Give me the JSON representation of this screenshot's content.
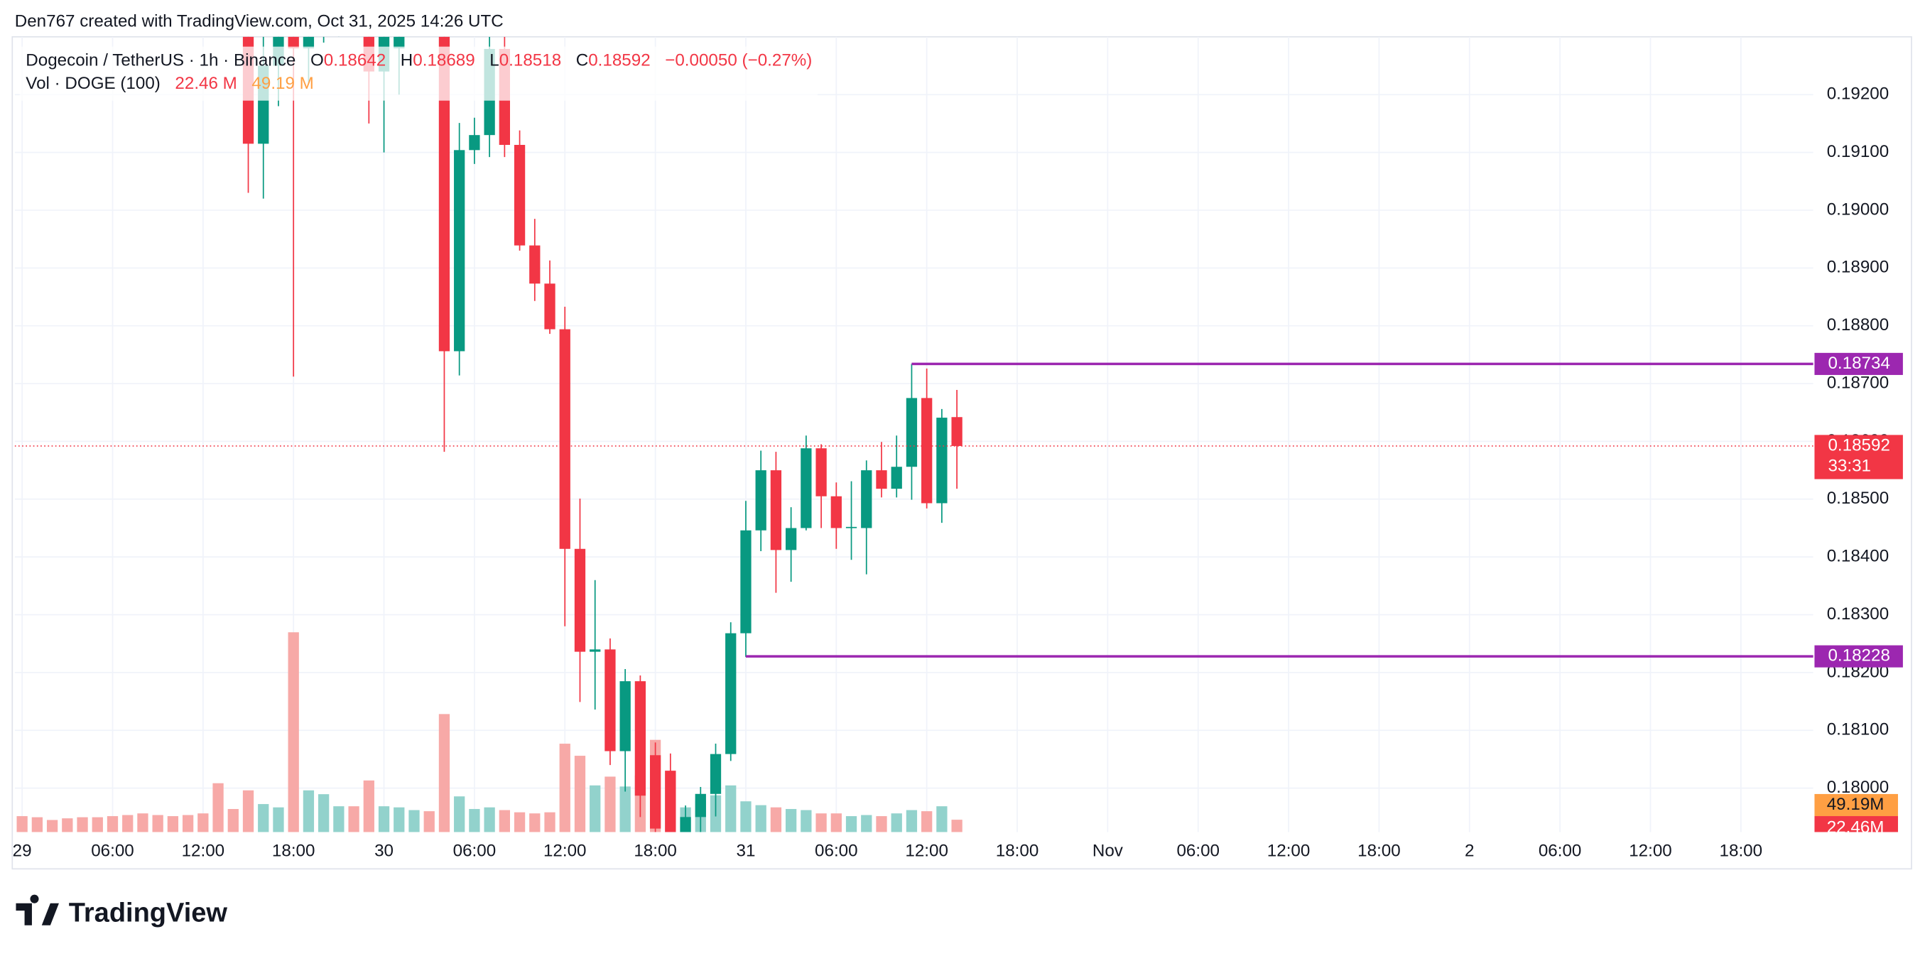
{
  "chart_data": {
    "type": "candlestick",
    "attribution": "Den767 created with TradingView.com, Oct 31, 2025 14:26 UTC",
    "title": "Dogecoin / TetherUS · 1h · Binance",
    "ohlc_keys": [
      "O",
      "H",
      "L",
      "C"
    ],
    "change": "−0.00050 (−0.27%)",
    "volume_title": "Vol · DOGE (100)",
    "volume_value_label": "22.46 M",
    "volume_ma_label": "49.19 M",
    "volume_axis_label": "22.46M",
    "volume_ma_axis_label": "49.19M",
    "volume_ma": 49.19,
    "countdown": "33:31",
    "logo": "TradingView",
    "x": [
      0,
      1,
      2,
      3,
      4,
      5,
      6,
      7,
      8,
      9,
      10,
      11,
      12,
      13,
      14,
      15,
      16,
      17,
      18,
      19,
      20,
      21,
      22,
      23,
      24,
      25,
      26,
      27,
      28,
      29,
      30,
      31,
      32,
      33,
      34,
      35,
      36,
      37,
      38,
      39,
      40,
      41,
      42,
      43,
      44,
      45,
      46,
      47,
      48,
      49,
      50,
      51,
      52,
      53,
      54,
      55,
      56,
      57,
      58,
      59,
      60,
      61,
      62
    ],
    "open": [
      null,
      null,
      null,
      null,
      null,
      null,
      null,
      null,
      null,
      null,
      null,
      null,
      null,
      null,
      null,
      0.1935,
      0.19115,
      0.1925,
      0.1932,
      0.1928,
      0.1932,
      0.1935,
      0.1938,
      0.1934,
      0.1924,
      0.1928,
      0.1935,
      0.1937,
      0.1936,
      0.18756,
      0.19104,
      0.1913,
      0.19279,
      0.19113,
      0.18939,
      0.18873,
      0.18794,
      0.18414,
      0.18236,
      0.1824,
      0.18064,
      0.18185,
      0.18057,
      0.1803,
      0.179,
      0.1795,
      0.1799,
      0.18059,
      0.18268,
      0.18446,
      0.1855,
      0.18412,
      0.1845,
      0.18588,
      0.18505,
      0.1845,
      0.1845,
      0.1855,
      0.18518,
      0.18556,
      0.18675,
      0.18493,
      0.18642
    ],
    "high": [
      null,
      null,
      null,
      null,
      null,
      null,
      null,
      null,
      null,
      null,
      null,
      null,
      null,
      null,
      null,
      0.194,
      0.1935,
      0.194,
      0.1935,
      0.1935,
      0.194,
      0.1942,
      0.1941,
      0.1938,
      0.1936,
      0.194,
      0.194,
      0.1942,
      0.1939,
      0.19151,
      0.1916,
      0.193,
      0.193,
      0.19138,
      0.18985,
      0.18913,
      0.18833,
      0.18501,
      0.1836,
      0.18259,
      0.18206,
      0.18195,
      0.18079,
      0.1806,
      0.1797,
      0.18002,
      0.18077,
      0.18287,
      0.18497,
      0.18584,
      0.18582,
      0.18486,
      0.1861,
      0.18595,
      0.18529,
      0.18531,
      0.18567,
      0.18599,
      0.1861,
      0.18734,
      0.18726,
      0.18656,
      0.18689
    ],
    "low": [
      null,
      null,
      null,
      null,
      null,
      null,
      null,
      null,
      null,
      null,
      null,
      null,
      null,
      null,
      null,
      0.1903,
      0.1902,
      0.1918,
      0.18712,
      0.1922,
      0.1929,
      0.193,
      0.1931,
      0.1915,
      0.191,
      0.192,
      0.1931,
      0.1933,
      0.18582,
      0.18714,
      0.1908,
      0.19092,
      0.19092,
      0.1893,
      0.18843,
      0.18786,
      0.1828,
      0.18149,
      0.18136,
      0.1804,
      0.17994,
      0.1795,
      0.179,
      0.1788,
      0.1786,
      0.1791,
      0.17951,
      0.18047,
      0.18227,
      0.1841,
      0.18338,
      0.18357,
      0.18446,
      0.1845,
      0.18414,
      0.18395,
      0.1837,
      0.18503,
      0.18503,
      0.18499,
      0.18484,
      0.18459,
      0.18518
    ],
    "close": [
      null,
      null,
      null,
      null,
      null,
      null,
      null,
      null,
      null,
      null,
      null,
      null,
      null,
      null,
      null,
      0.19115,
      0.1925,
      0.1935,
      0.1928,
      0.1932,
      0.1935,
      0.1938,
      0.1934,
      0.1924,
      0.1931,
      0.1935,
      0.1937,
      0.1936,
      0.18756,
      0.19104,
      0.1913,
      0.19279,
      0.19113,
      0.18939,
      0.18873,
      0.18794,
      0.18414,
      0.18236,
      0.1824,
      0.18064,
      0.18185,
      0.17987,
      0.1793,
      0.1792,
      0.1795,
      0.1799,
      0.18059,
      0.18268,
      0.18446,
      0.1855,
      0.18412,
      0.1845,
      0.18588,
      0.18505,
      0.1845,
      0.18452,
      0.1855,
      0.18518,
      0.18556,
      0.18675,
      0.18493,
      0.18641,
      0.18592
    ],
    "volume": [
      29,
      27,
      22,
      25,
      27,
      27,
      29,
      31,
      34,
      31,
      29,
      31,
      34,
      89,
      42,
      76,
      51,
      45,
      364,
      76,
      69,
      47,
      47,
      94,
      47,
      45,
      40,
      38,
      215,
      65,
      42,
      45,
      40,
      36,
      34,
      36,
      161,
      139,
      85,
      101,
      83,
      103,
      168,
      112,
      45,
      58,
      67,
      85,
      56,
      49,
      45,
      42,
      40,
      34,
      34,
      29,
      31,
      29,
      34,
      40,
      38,
      47,
      22.46
    ],
    "xlim": [
      -0.49,
      118.8
    ],
    "xticks": [
      {
        "value": 0,
        "label": "29"
      },
      {
        "value": 6,
        "label": "06:00"
      },
      {
        "value": 12,
        "label": "12:00"
      },
      {
        "value": 18,
        "label": "18:00"
      },
      {
        "value": 24,
        "label": "30"
      },
      {
        "value": 30,
        "label": "06:00"
      },
      {
        "value": 36,
        "label": "12:00"
      },
      {
        "value": 42,
        "label": "18:00"
      },
      {
        "value": 48,
        "label": "31"
      },
      {
        "value": 54,
        "label": "06:00"
      },
      {
        "value": 60,
        "label": "12:00"
      },
      {
        "value": 66,
        "label": "18:00"
      },
      {
        "value": 72,
        "label": "Nov"
      },
      {
        "value": 78,
        "label": "06:00"
      },
      {
        "value": 84,
        "label": "12:00"
      },
      {
        "value": 90,
        "label": "18:00"
      },
      {
        "value": 96,
        "label": "2"
      },
      {
        "value": 102,
        "label": "06:00"
      },
      {
        "value": 108,
        "label": "12:00"
      },
      {
        "value": 114,
        "label": "18:00"
      }
    ],
    "ylim": [
      0.17924,
      0.193
    ],
    "yticks": [
      {
        "value": 0.18,
        "label": "0.18000"
      },
      {
        "value": 0.181,
        "label": "0.18100"
      },
      {
        "value": 0.182,
        "label": "0.18200"
      },
      {
        "value": 0.183,
        "label": "0.18300"
      },
      {
        "value": 0.184,
        "label": "0.18400"
      },
      {
        "value": 0.185,
        "label": "0.18500"
      },
      {
        "value": 0.186,
        "label": "0.18600"
      },
      {
        "value": 0.187,
        "label": "0.18700"
      },
      {
        "value": 0.188,
        "label": "0.18800"
      },
      {
        "value": 0.189,
        "label": "0.18900"
      },
      {
        "value": 0.19,
        "label": "0.19000"
      },
      {
        "value": 0.191,
        "label": "0.19100"
      },
      {
        "value": 0.192,
        "label": "0.19200"
      }
    ],
    "volume_ylim": [
      0,
      1449
    ],
    "hlines": [
      {
        "value": 0.18734,
        "from_x": 59
      },
      {
        "value": 0.18228,
        "from_x": 48
      }
    ],
    "grid": true,
    "up_color": "#089981",
    "down_color": "#f23645",
    "volume_up_color": "#92d2cc",
    "volume_down_color": "#f7a9a7",
    "volume_ma_color": "#ff9f43",
    "hline_color": "#9c27b0"
  }
}
